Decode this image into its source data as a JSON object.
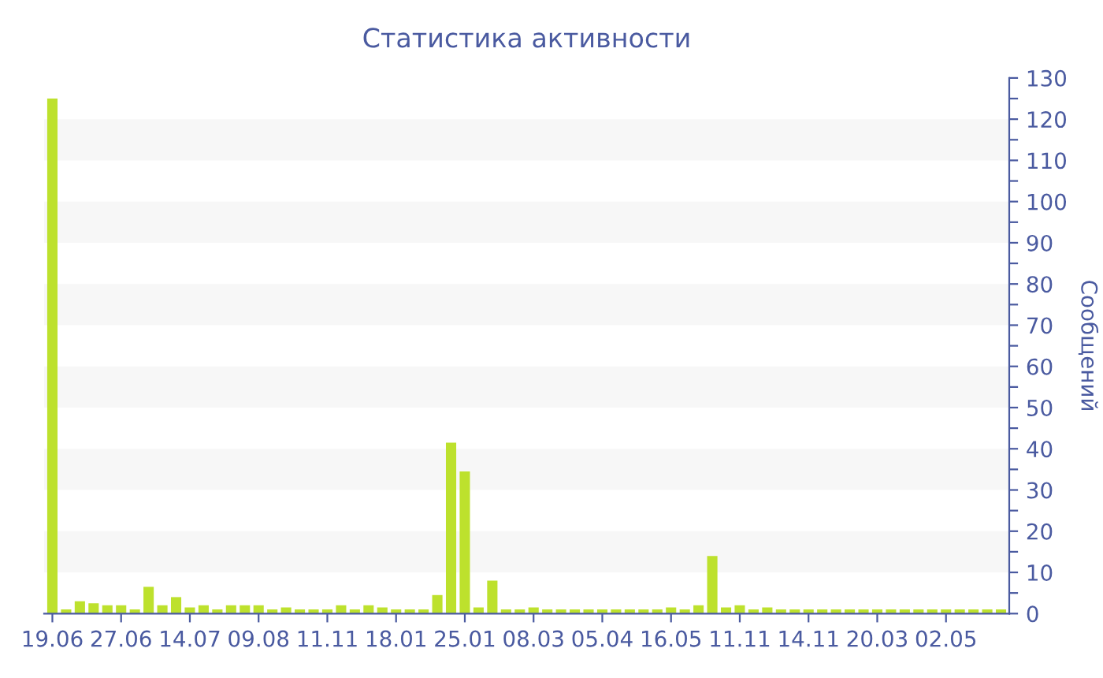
{
  "chart_data": {
    "type": "bar",
    "title": "Статистика активности",
    "ylabel": "Сообщений",
    "categories": [
      "19.06",
      null,
      null,
      null,
      null,
      "27.06",
      null,
      null,
      null,
      null,
      "14.07",
      null,
      null,
      null,
      null,
      "09.08",
      null,
      null,
      null,
      null,
      "11.11",
      null,
      null,
      null,
      null,
      "18.01",
      null,
      null,
      null,
      null,
      "25.01",
      null,
      null,
      null,
      null,
      "08.03",
      null,
      null,
      null,
      null,
      "05.04",
      null,
      null,
      null,
      null,
      "16.05",
      null,
      null,
      null,
      null,
      "11.11",
      null,
      null,
      null,
      null,
      "14.11",
      null,
      null,
      null,
      null,
      "20.03",
      null,
      null,
      null,
      null,
      "02.05",
      null,
      null,
      null,
      null
    ],
    "values": [
      125,
      1,
      3,
      2.5,
      2,
      2,
      1,
      6.5,
      2,
      4,
      1.5,
      2,
      1,
      2,
      2,
      2,
      1,
      1.5,
      1,
      1,
      1,
      2,
      1,
      2,
      1.5,
      1,
      1,
      1,
      4.5,
      41.5,
      34.5,
      1.5,
      8,
      1,
      1,
      1.5,
      1,
      1,
      1,
      1,
      1,
      1,
      1,
      1,
      1,
      1.5,
      1,
      2,
      14,
      1.5,
      2,
      1,
      1.5,
      1,
      1,
      1,
      1,
      1,
      1,
      1,
      1,
      1,
      1,
      1,
      1,
      1,
      1,
      1,
      1,
      1
    ],
    "color": "#bde12d",
    "ylim": [
      0,
      130
    ],
    "yticks": [
      0,
      {
        "value": 5,
        "label": null
      },
      10,
      {
        "value": 15,
        "label": null
      },
      20,
      {
        "value": 25,
        "label": null
      },
      30,
      {
        "value": 35,
        "label": null
      },
      40,
      {
        "value": 45,
        "label": null
      },
      50,
      {
        "value": 55,
        "label": null
      },
      60,
      {
        "value": 65,
        "label": null
      },
      70,
      {
        "value": 75,
        "label": null
      },
      80,
      {
        "value": 85,
        "label": null
      },
      90,
      {
        "value": 95,
        "label": null
      },
      100,
      {
        "value": 105,
        "label": null
      },
      110,
      {
        "value": 115,
        "label": null
      },
      120,
      {
        "value": 125,
        "label": null
      },
      130
    ],
    "bands": [
      {
        "axis": "y",
        "from": 10,
        "to": 20,
        "color": "#f7f7f7"
      },
      {
        "axis": "y",
        "from": 30,
        "to": 40,
        "color": "#f7f7f7"
      },
      {
        "axis": "y",
        "from": 50,
        "to": 60,
        "color": "#f7f7f7"
      },
      {
        "axis": "y",
        "from": 70,
        "to": 80,
        "color": "#f7f7f7"
      },
      {
        "axis": "y",
        "from": 90,
        "to": 100,
        "color": "#f7f7f7"
      },
      {
        "axis": "y",
        "from": 110,
        "to": 120,
        "color": "#f7f7f7"
      }
    ],
    "grid": false,
    "legend": false
  }
}
